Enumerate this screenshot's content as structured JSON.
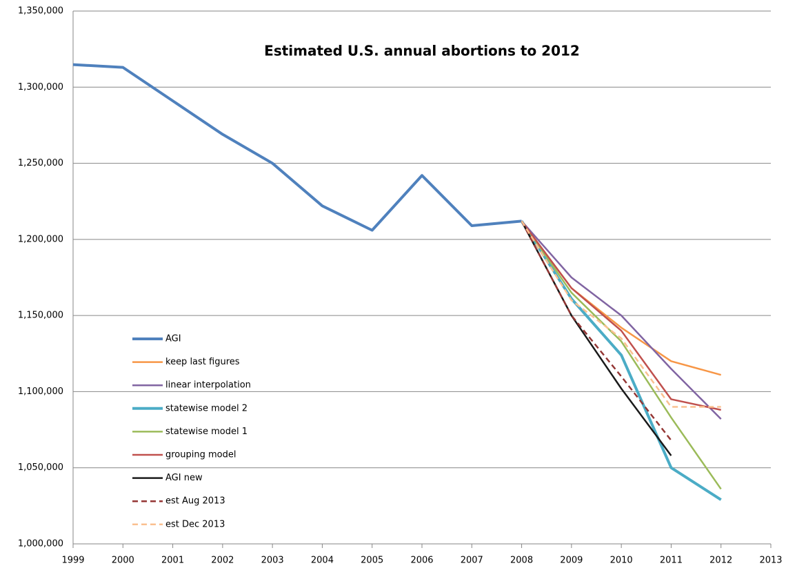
{
  "chart_data": {
    "type": "line",
    "title": "Estimated U.S. annual abortions to 2012",
    "x": [
      1999,
      2000,
      2001,
      2002,
      2003,
      2004,
      2005,
      2006,
      2007,
      2008,
      2009,
      2010,
      2011,
      2012
    ],
    "xlim": [
      1999,
      2013
    ],
    "xticks": [
      1999,
      2000,
      2001,
      2002,
      2003,
      2004,
      2005,
      2006,
      2007,
      2008,
      2009,
      2010,
      2011,
      2012,
      2013
    ],
    "ylim": [
      1000000,
      1350000
    ],
    "yticks": [
      {
        "value": 1000000,
        "label": "1,000,000"
      },
      {
        "value": 1050000,
        "label": "1,050,000"
      },
      {
        "value": 1100000,
        "label": "1,100,000"
      },
      {
        "value": 1150000,
        "label": "1,150,000"
      },
      {
        "value": 1200000,
        "label": "1,200,000"
      },
      {
        "value": 1250000,
        "label": "1,250,000"
      },
      {
        "value": 1300000,
        "label": "1,300,000"
      },
      {
        "value": 1350000,
        "label": "1,350,000"
      }
    ],
    "grid": true,
    "legend": "lower-left",
    "series": [
      {
        "name": "AGI",
        "color": "#4F81BD",
        "width": 4,
        "dash": false,
        "values": [
          1314800,
          1313000,
          1291000,
          1269000,
          1250000,
          1222000,
          1206000,
          1242000,
          1209000,
          1212000,
          null,
          null,
          null,
          null
        ]
      },
      {
        "name": "keep last figures",
        "color": "#F79646",
        "width": 2.5,
        "dash": false,
        "values": [
          null,
          null,
          null,
          null,
          null,
          null,
          null,
          null,
          null,
          1212000,
          1168000,
          1142000,
          1120000,
          1111000
        ]
      },
      {
        "name": "linear interpolation",
        "color": "#8064A2",
        "width": 2.5,
        "dash": false,
        "values": [
          null,
          null,
          null,
          null,
          null,
          null,
          null,
          null,
          null,
          1212000,
          1175000,
          1150000,
          1115000,
          1082000
        ]
      },
      {
        "name": "statewise model 2",
        "color": "#4BACC6",
        "width": 4,
        "dash": false,
        "values": [
          null,
          null,
          null,
          null,
          null,
          null,
          null,
          null,
          null,
          1212000,
          1161000,
          1124000,
          1050000,
          1029000
        ]
      },
      {
        "name": "statewise model 1",
        "color": "#9BBB59",
        "width": 2.5,
        "dash": false,
        "values": [
          null,
          null,
          null,
          null,
          null,
          null,
          null,
          null,
          null,
          1212000,
          1165000,
          1133000,
          1083000,
          1036000
        ]
      },
      {
        "name": "grouping model",
        "color": "#C0504D",
        "width": 2.5,
        "dash": false,
        "values": [
          null,
          null,
          null,
          null,
          null,
          null,
          null,
          null,
          null,
          1212000,
          1168000,
          1140000,
          1095000,
          1088000
        ]
      },
      {
        "name": "AGI new",
        "color": "#1a1a1a",
        "width": 2.5,
        "dash": false,
        "values": [
          null,
          null,
          null,
          null,
          null,
          null,
          null,
          null,
          null,
          1212000,
          1150000,
          1102000,
          1058000,
          null
        ]
      },
      {
        "name": "est Aug 2013",
        "color": "#943634",
        "width": 2.5,
        "dash": true,
        "values": [
          null,
          null,
          null,
          null,
          null,
          null,
          null,
          null,
          null,
          1212000,
          1150000,
          1110000,
          1068000,
          null
        ]
      },
      {
        "name": "est Dec 2013",
        "color": "#FAC090",
        "width": 2.5,
        "dash": true,
        "values": [
          null,
          null,
          null,
          null,
          null,
          null,
          null,
          null,
          null,
          1212000,
          1160000,
          1135000,
          1090000,
          1090000
        ]
      }
    ]
  }
}
